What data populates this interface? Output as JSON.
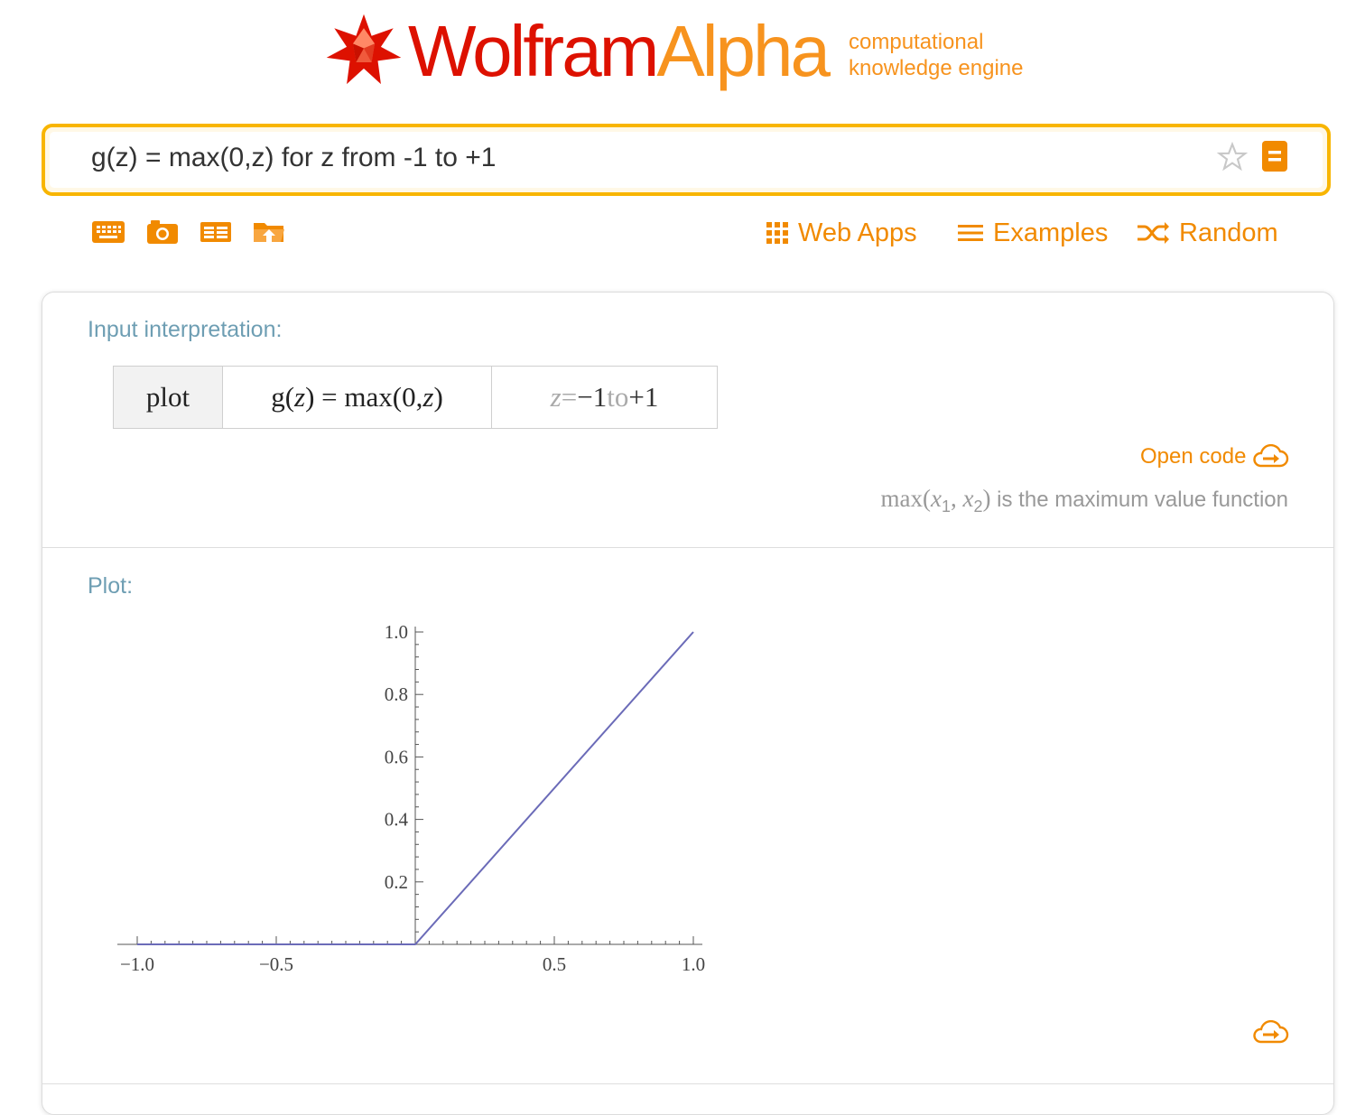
{
  "logo": {
    "wordmark_part1": "Wolfram",
    "wordmark_part2": "Alpha",
    "tagline_line1": "computational",
    "tagline_line2": "knowledge engine"
  },
  "colors": {
    "brand_red": "#dd1100",
    "brand_orange": "#f7931e",
    "link_orange": "#f18a00",
    "search_border": "#f8b500",
    "pod_title": "#6e9eb3",
    "plot_line": "#6b6bb8"
  },
  "search": {
    "value": "g(z) = max(0,z) for z from -1 to +1",
    "favorite_icon": "star-icon",
    "go_icon": "equals-icon"
  },
  "toolbar": {
    "icons": [
      "keyboard-icon",
      "camera-icon",
      "table-icon",
      "folder-upload-icon"
    ],
    "links": [
      {
        "label": "Web Apps",
        "icon": "grid-icon"
      },
      {
        "label": "Examples",
        "icon": "hamburger-icon"
      },
      {
        "label": "Random",
        "icon": "shuffle-icon"
      }
    ]
  },
  "pods": {
    "interpretation": {
      "title": "Input interpretation:",
      "cell_plot": "plot",
      "cell_func_lhs": "g(",
      "cell_func_var": "z",
      "cell_func_mid": ") = max(0, ",
      "cell_func_var2": "z",
      "cell_func_end": ")",
      "range_var": "z",
      "range_eq": " = ",
      "range_from": "−1",
      "range_to_word": " to ",
      "range_to": "+1",
      "open_code_label": "Open code",
      "note_max": "max(",
      "note_x": "x",
      "note_sub1": "1",
      "note_comma": ", ",
      "note_sub2": "2",
      "note_close": ")",
      "note_text": " is the maximum value function"
    },
    "plot": {
      "title": "Plot:"
    }
  },
  "chart_data": {
    "type": "line",
    "title": "",
    "xlabel": "",
    "ylabel": "",
    "xlim": [
      -1.0,
      1.0
    ],
    "ylim": [
      0.0,
      1.0
    ],
    "x_ticks": [
      -1.0,
      -0.5,
      0.5,
      1.0
    ],
    "x_tick_labels": [
      "−1.0",
      "−0.5",
      "0.5",
      "1.0"
    ],
    "y_ticks": [
      0.2,
      0.4,
      0.6,
      0.8,
      1.0
    ],
    "y_tick_labels": [
      "0.2",
      "0.4",
      "0.6",
      "0.8",
      "1.0"
    ],
    "series": [
      {
        "x": [
          -1.0,
          0.0,
          1.0
        ],
        "y": [
          0.0,
          0.0,
          1.0
        ],
        "color": "#6b6bb8"
      }
    ],
    "grid": false,
    "legend": "none"
  }
}
